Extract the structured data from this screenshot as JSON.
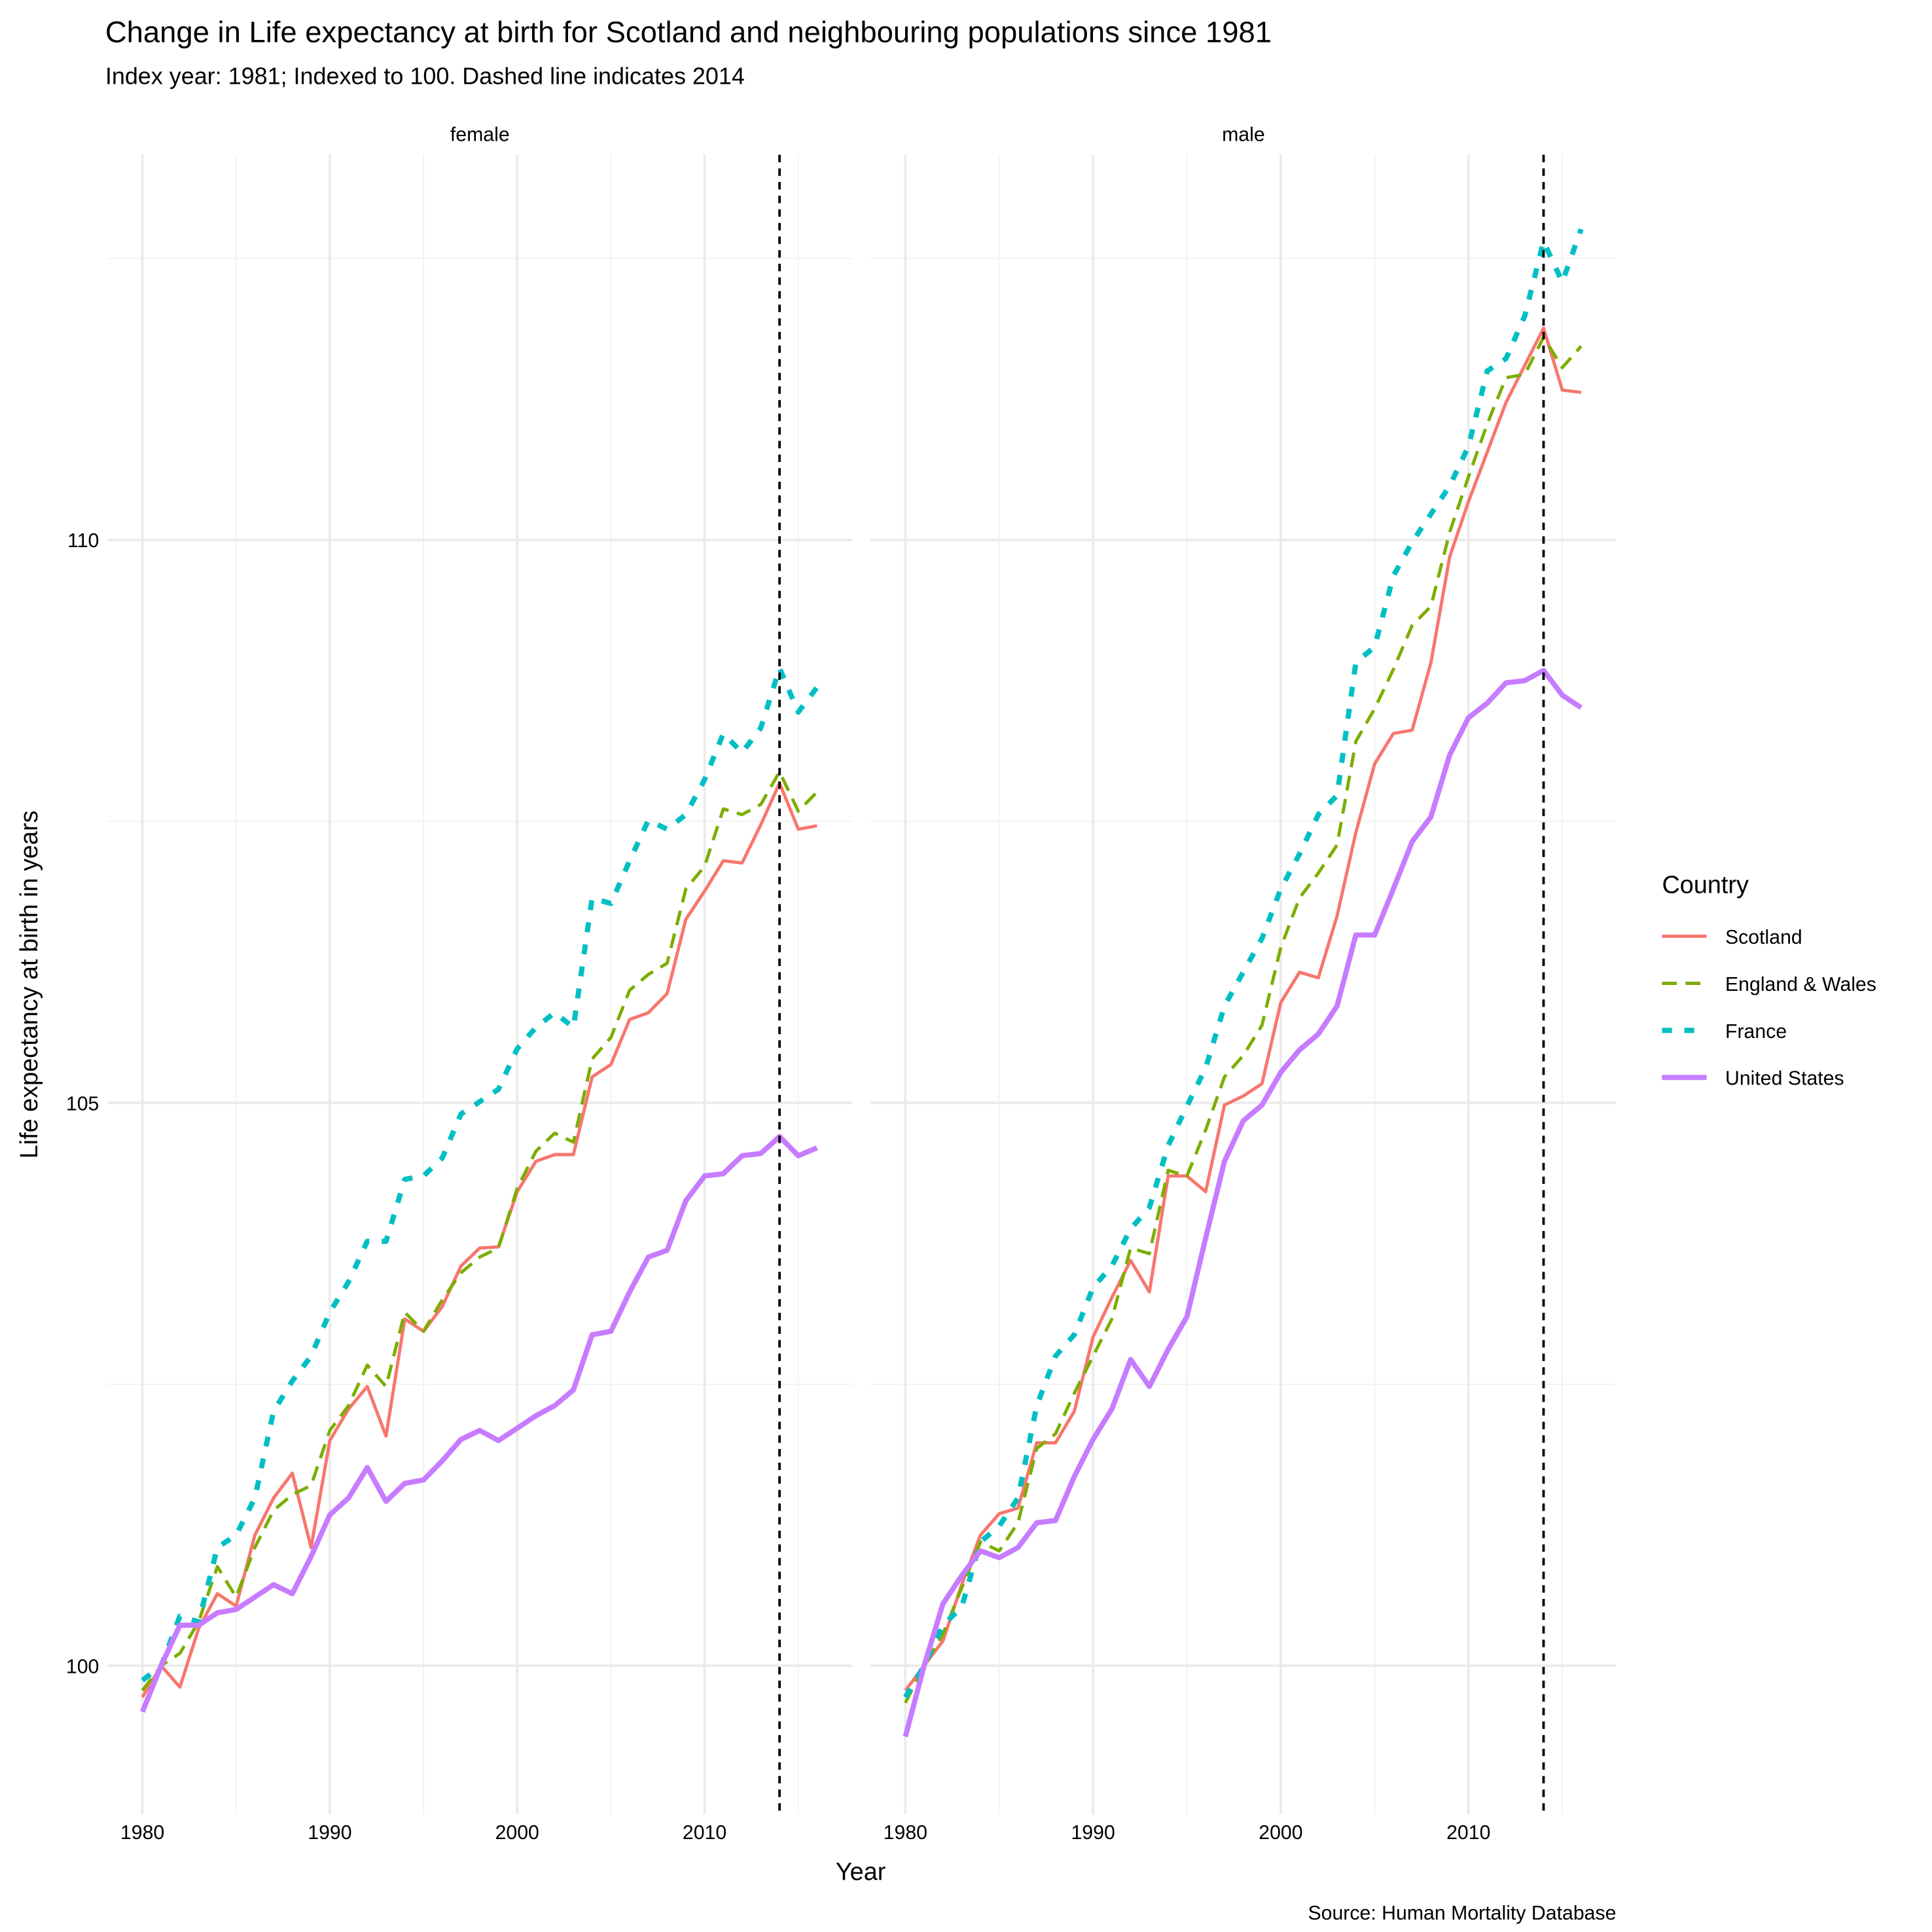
{
  "chart_data": {
    "type": "line",
    "title": "Change in Life expectancy at birth for Scotland and neighbouring populations since 1981",
    "subtitle": "Index year: 1981; Indexed to 100. Dashed line indicates 2014",
    "caption": "Source: Human Mortality Database",
    "x_label": "Year",
    "y_label": "Life expectancy at birth in years",
    "legend_title": "Country",
    "legend_position": "right",
    "facets": [
      "female",
      "male"
    ],
    "x": [
      1980,
      1981,
      1982,
      1983,
      1984,
      1985,
      1986,
      1987,
      1988,
      1989,
      1990,
      1991,
      1992,
      1993,
      1994,
      1995,
      1996,
      1997,
      1998,
      1999,
      2000,
      2001,
      2002,
      2003,
      2004,
      2005,
      2006,
      2007,
      2008,
      2009,
      2010,
      2011,
      2012,
      2013,
      2014,
      2015,
      2016
    ],
    "xlim": [
      1978.15,
      2017.87
    ],
    "ylim": [
      98.68,
      113.42
    ],
    "xticks": [
      1980,
      1990,
      2000,
      2010
    ],
    "yticks": [
      100,
      105,
      110
    ],
    "minor_xticks": [
      1985,
      1995,
      2005,
      2015
    ],
    "minor_yticks": [
      102.5,
      107.5,
      112.5
    ],
    "grid": true,
    "vline": 2014,
    "series": [
      {
        "name": "Scotland",
        "color": "#F8766D",
        "dash": "solid",
        "values": [
          [
            99.72,
            100,
            99.81,
            100.33,
            100.64,
            100.53,
            101.16,
            101.49,
            101.71,
            101.05,
            102.0,
            102.28,
            102.48,
            102.04,
            103.08,
            102.97,
            103.19,
            103.55,
            103.71,
            103.72,
            104.21,
            104.48,
            104.54,
            104.54,
            105.23,
            105.34,
            105.74,
            105.8,
            105.97,
            106.63,
            106.88,
            107.15,
            107.13,
            107.47,
            107.84,
            107.43,
            107.46
          ],
          [
            99.78,
            100,
            100.22,
            100.72,
            101.16,
            101.35,
            101.4,
            101.98,
            101.98,
            102.26,
            102.92,
            103.27,
            103.6,
            103.32,
            104.35,
            104.35,
            104.21,
            104.98,
            105.06,
            105.17,
            105.89,
            106.16,
            106.11,
            106.66,
            107.4,
            108.01,
            108.28,
            108.31,
            108.91,
            109.85,
            110.34,
            110.78,
            111.22,
            111.55,
            111.88,
            111.33,
            111.31
          ]
        ]
      },
      {
        "name": "England & Wales",
        "color": "#7CAE00",
        "dash": "dashed",
        "values": [
          [
            99.78,
            100,
            100.11,
            100.39,
            100.88,
            100.61,
            101.05,
            101.38,
            101.52,
            101.6,
            102.09,
            102.31,
            102.67,
            102.48,
            103.14,
            102.97,
            103.25,
            103.49,
            103.63,
            103.71,
            104.24,
            104.57,
            104.73,
            104.65,
            105.39,
            105.58,
            106.0,
            106.14,
            106.24,
            106.9,
            107.1,
            107.61,
            107.56,
            107.65,
            107.94,
            107.59,
            107.76
          ],
          [
            99.67,
            100,
            100.28,
            100.69,
            101.1,
            101.02,
            101.27,
            101.93,
            102.06,
            102.42,
            102.75,
            103.08,
            103.71,
            103.66,
            104.4,
            104.35,
            104.76,
            105.23,
            105.42,
            105.69,
            106.38,
            106.82,
            107.04,
            107.29,
            108.21,
            108.5,
            108.85,
            109.24,
            109.41,
            110.07,
            110.56,
            111.03,
            111.44,
            111.47,
            111.8,
            111.53,
            111.72
          ]
        ]
      },
      {
        "name": "France",
        "color": "#00BFC4",
        "dash": "dotted",
        "values": [
          [
            99.87,
            100,
            100.44,
            100.39,
            101.05,
            101.16,
            101.49,
            102.26,
            102.53,
            102.75,
            103.14,
            103.41,
            103.77,
            103.77,
            104.32,
            104.35,
            104.51,
            104.9,
            105.01,
            105.12,
            105.48,
            105.67,
            105.8,
            105.67,
            106.82,
            106.77,
            107.15,
            107.51,
            107.43,
            107.56,
            107.87,
            108.28,
            108.11,
            108.33,
            108.86,
            108.47,
            108.69
          ],
          [
            99.72,
            100,
            100.36,
            100.52,
            101.1,
            101.24,
            101.49,
            102.31,
            102.75,
            102.94,
            103.36,
            103.55,
            103.88,
            104.07,
            104.62,
            104.97,
            105.31,
            105.86,
            106.16,
            106.46,
            106.9,
            107.21,
            107.56,
            107.73,
            108.91,
            109.05,
            109.68,
            109.98,
            110.23,
            110.48,
            110.83,
            111.5,
            111.61,
            111.99,
            112.65,
            112.29,
            112.76
          ]
        ]
      },
      {
        "name": "United States",
        "color": "#C77CFF",
        "dash": "solid",
        "values": [
          [
            99.59,
            100,
            100.36,
            100.36,
            100.47,
            100.5,
            100.61,
            100.72,
            100.64,
            100.97,
            101.34,
            101.49,
            101.76,
            101.46,
            101.62,
            101.65,
            101.82,
            102.01,
            102.09,
            102.0,
            102.11,
            102.22,
            102.31,
            102.45,
            102.94,
            102.97,
            103.32,
            103.63,
            103.69,
            104.13,
            104.35,
            104.37,
            104.53,
            104.55,
            104.7,
            104.53,
            104.6
          ],
          [
            99.37,
            100,
            100.55,
            100.8,
            101.02,
            100.96,
            101.05,
            101.27,
            101.29,
            101.68,
            102.01,
            102.28,
            102.72,
            102.48,
            102.81,
            103.1,
            103.8,
            104.48,
            104.84,
            104.98,
            105.27,
            105.47,
            105.61,
            105.86,
            106.49,
            106.49,
            106.9,
            107.32,
            107.54,
            108.09,
            108.42,
            108.55,
            108.73,
            108.75,
            108.84,
            108.62,
            108.51
          ]
        ]
      }
    ]
  }
}
